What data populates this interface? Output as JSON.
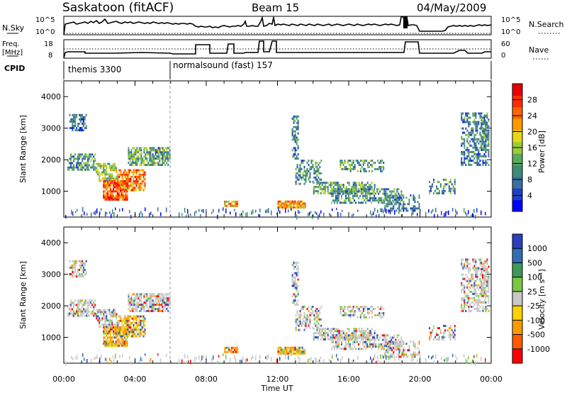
{
  "header": {
    "station": "Saskatoon (fitACF)",
    "beam": "Beam 15",
    "date": "04/May/2009"
  },
  "strips": {
    "nsky_label": "N.Sky",
    "nsky_left_top": "10^5",
    "nsky_left_bottom": "10^0",
    "nsky_right_top": "10^5",
    "nsky_right_bottom": "10^0",
    "nsearch_label": "N.Search",
    "freq_label_1": "Freq.",
    "freq_label_2": "[MHz]",
    "freq_top": "18",
    "freq_bottom": "8",
    "nave_top": "60",
    "nave_bottom": "0",
    "nave_label": "Nave",
    "cpid_label": "CPID",
    "cpid_1": "themis 3300",
    "cpid_2": "normalsound (fast) 157"
  },
  "chart_data": [
    {
      "type": "heatmap",
      "name": "power",
      "ylabel": "Slant Range [km]",
      "yticks": [
        "1000",
        "2000",
        "3000",
        "4000"
      ],
      "ylim": [
        180,
        4500
      ],
      "xticks": [
        "00:00",
        "04:00",
        "08:00",
        "12:00",
        "16:00",
        "20:00",
        "00:00"
      ],
      "colorbar_label": "Power [dB]",
      "colorbar_ticks": [
        "4",
        "8",
        "12",
        "16",
        "20",
        "24",
        "28"
      ],
      "colorscale": [
        "#0000ff",
        "#1f3fbf",
        "#3a6fa0",
        "#3c8c78",
        "#5aa95a",
        "#9ccc33",
        "#e6d617",
        "#ff9900",
        "#ff6600",
        "#ff2b00",
        "#e60000"
      ]
    },
    {
      "type": "heatmap",
      "name": "velocity",
      "ylabel": "Slant Range [km]",
      "yticks": [
        "1000",
        "2000",
        "3000",
        "4000"
      ],
      "ylim": [
        180,
        4500
      ],
      "xticks": [
        "00:00",
        "04:00",
        "08:00",
        "12:00",
        "16:00",
        "20:00",
        "00:00"
      ],
      "xlabel": "Time UT",
      "colorbar_label": "Velocity [m s⁻¹]",
      "colorbar_ticks": [
        "1000",
        "500",
        "100",
        "25",
        "-25",
        "-100",
        "-500",
        "-1000"
      ],
      "colorscale": [
        "#2b3fbf",
        "#2e6fb0",
        "#3c9a5a",
        "#7cc642",
        "#c8c8c8",
        "#ffd200",
        "#ff9900",
        "#ff5a00",
        "#ff0000"
      ]
    }
  ]
}
